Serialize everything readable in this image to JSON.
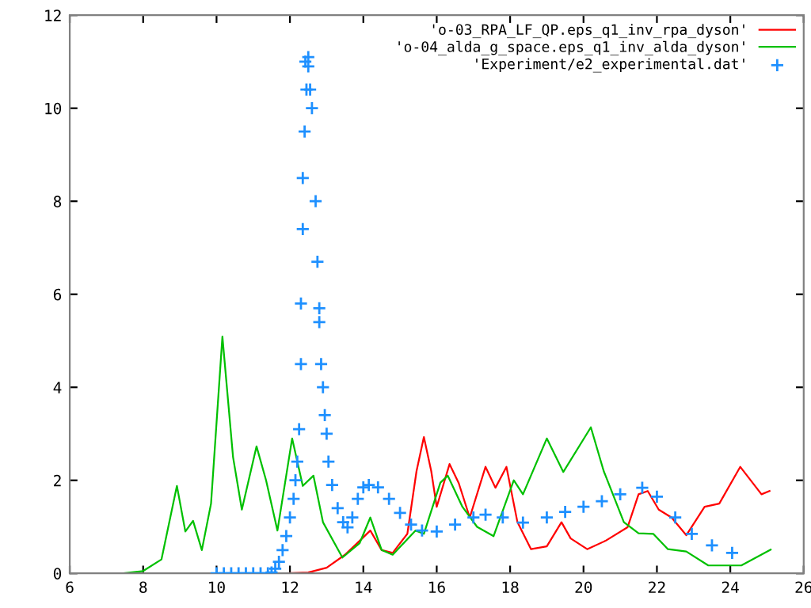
{
  "chart_data": {
    "type": "line",
    "xlim": [
      6,
      26
    ],
    "ylim": [
      0,
      12
    ],
    "xticks": [
      6,
      8,
      10,
      12,
      14,
      16,
      18,
      20,
      22,
      24,
      26
    ],
    "yticks": [
      0,
      2,
      4,
      6,
      8,
      10,
      12
    ],
    "grid": false,
    "legend": "top right",
    "series": [
      {
        "name": "'o-03_RPA_LF_QP.eps_q1_inv_rpa_dyson'",
        "color": "#ff0000",
        "x": [
          11.9,
          12.5,
          13.0,
          13.5,
          13.9,
          14.19,
          14.5,
          14.8,
          15.2,
          15.45,
          15.65,
          15.85,
          16.0,
          16.35,
          16.6,
          16.9,
          17.33,
          17.6,
          17.9,
          18.2,
          18.57,
          19.0,
          19.4,
          19.65,
          20.1,
          20.6,
          21.2,
          21.5,
          21.75,
          22.05,
          22.4,
          22.8,
          23.3,
          23.7,
          24.27,
          24.85,
          25.07
        ],
        "values": [
          0,
          0.02,
          0.12,
          0.4,
          0.7,
          0.92,
          0.5,
          0.44,
          0.85,
          2.2,
          2.93,
          2.2,
          1.43,
          2.35,
          1.94,
          1.2,
          2.29,
          1.84,
          2.29,
          1.1,
          0.52,
          0.58,
          1.1,
          0.75,
          0.52,
          0.7,
          0.99,
          1.7,
          1.77,
          1.37,
          1.2,
          0.82,
          1.43,
          1.5,
          2.29,
          1.7,
          1.77
        ]
      },
      {
        "name": "'o-04_alda_g_space.eps_q1_inv_alda_dyson'",
        "color": "#00c000",
        "x": [
          7.46,
          8.0,
          8.5,
          8.92,
          9.15,
          9.36,
          9.6,
          9.85,
          10.16,
          10.45,
          10.69,
          11.09,
          11.35,
          11.66,
          12.06,
          12.35,
          12.64,
          12.9,
          13.43,
          13.9,
          14.19,
          14.5,
          14.8,
          15.42,
          15.65,
          16.1,
          16.3,
          16.7,
          17.1,
          17.55,
          18.1,
          18.35,
          19.0,
          19.45,
          20.2,
          20.55,
          21.1,
          21.5,
          21.9,
          22.3,
          22.8,
          23.4,
          24.3,
          25.1
        ],
        "values": [
          0,
          0.05,
          0.3,
          1.88,
          0.9,
          1.13,
          0.5,
          1.5,
          5.09,
          2.5,
          1.37,
          2.73,
          2.0,
          0.92,
          2.9,
          1.88,
          2.1,
          1.1,
          0.34,
          0.65,
          1.2,
          0.5,
          0.4,
          0.92,
          0.85,
          1.95,
          2.1,
          1.43,
          1.0,
          0.8,
          2.0,
          1.7,
          2.9,
          2.18,
          3.14,
          2.2,
          1.1,
          0.86,
          0.85,
          0.52,
          0.47,
          0.17,
          0.17,
          0.51
        ]
      },
      {
        "name": "'Experiment/e2_experimental.dat'",
        "type": "scatter",
        "marker": "cross",
        "color": "#1e90ff",
        "x": [
          10.0,
          10.2,
          10.4,
          10.6,
          10.8,
          11.0,
          11.2,
          11.4,
          11.5,
          11.6,
          11.7,
          11.8,
          11.9,
          12.0,
          12.1,
          12.15,
          12.2,
          12.25,
          12.3,
          12.3,
          12.35,
          12.35,
          12.4,
          12.45,
          12.42,
          12.5,
          12.5,
          12.55,
          12.6,
          12.7,
          12.75,
          12.8,
          12.8,
          12.85,
          12.9,
          12.95,
          13.0,
          13.05,
          13.15,
          13.3,
          13.45,
          13.57,
          13.7,
          13.85,
          14.0,
          14.15,
          14.4,
          14.7,
          15.0,
          15.3,
          15.6,
          16.0,
          16.5,
          17.0,
          17.33,
          17.8,
          18.35,
          19.0,
          19.5,
          20.0,
          20.5,
          21.0,
          21.6,
          22.0,
          22.5,
          22.95,
          23.5,
          24.05
        ],
        "values": [
          0,
          0,
          0,
          0,
          0,
          0,
          0,
          0,
          0.02,
          0.1,
          0.25,
          0.5,
          0.8,
          1.2,
          1.6,
          2.0,
          2.4,
          3.1,
          4.5,
          5.8,
          7.4,
          8.5,
          9.5,
          10.4,
          11.0,
          11.1,
          10.9,
          10.4,
          10.0,
          8.0,
          6.7,
          5.7,
          5.4,
          4.5,
          4.0,
          3.4,
          3.0,
          2.4,
          1.9,
          1.4,
          1.1,
          0.99,
          1.2,
          1.6,
          1.85,
          1.9,
          1.85,
          1.6,
          1.3,
          1.05,
          0.92,
          0.9,
          1.05,
          1.2,
          1.26,
          1.2,
          1.09,
          1.2,
          1.32,
          1.43,
          1.55,
          1.7,
          1.84,
          1.65,
          1.2,
          0.85,
          0.6,
          0.44
        ]
      }
    ]
  }
}
